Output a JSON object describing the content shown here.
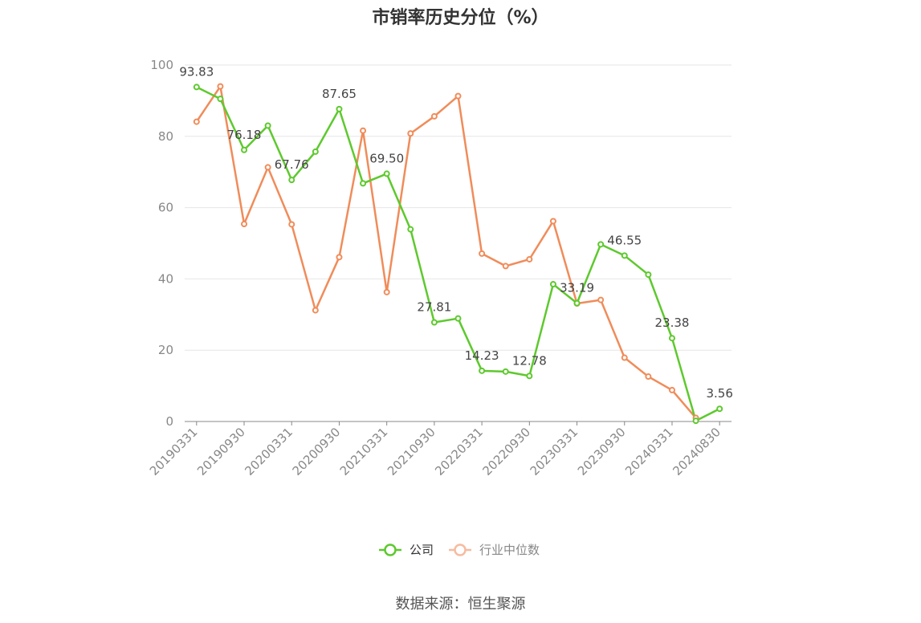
{
  "title": "市销率历史分位（%）",
  "source": "数据来源：恒生聚源",
  "colors": {
    "company": "#5ec92e",
    "industry": "#f08c5a",
    "grid": "#e6e6e6",
    "axis": "#888888"
  },
  "chart_data": {
    "type": "line",
    "title": "市销率历史分位（%）",
    "ylim": [
      0,
      100
    ],
    "yticks": [
      0,
      20,
      40,
      60,
      80,
      100
    ],
    "grid": true,
    "legend": "bottom-center",
    "x": [
      "20190331",
      "20190630",
      "20190930",
      "20191231",
      "20200331",
      "20200630",
      "20200930",
      "20201231",
      "20210331",
      "20210630",
      "20210930",
      "20211231",
      "20220331",
      "20220630",
      "20220930",
      "20221231",
      "20230331",
      "20230630",
      "20230930",
      "20231231",
      "20240331",
      "20240630",
      "20240830"
    ],
    "xtick_labels": [
      "20190331",
      "20190930",
      "20200331",
      "20200930",
      "20210331",
      "20210930",
      "20220331",
      "20220930",
      "20230331",
      "20230930",
      "20240331",
      "20240830"
    ],
    "series": [
      {
        "name": "公司",
        "color": "#5ec92e",
        "values": [
          93.83,
          90.5,
          76.18,
          83.0,
          67.76,
          75.7,
          87.65,
          66.8,
          69.5,
          53.9,
          27.81,
          28.9,
          14.23,
          14.0,
          12.78,
          38.5,
          33.19,
          49.7,
          46.55,
          41.2,
          23.38,
          0.2,
          3.56
        ],
        "labels": [
          93.83,
          null,
          76.18,
          null,
          67.76,
          null,
          87.65,
          null,
          69.5,
          null,
          27.81,
          null,
          14.23,
          null,
          12.78,
          null,
          33.19,
          null,
          46.55,
          null,
          23.38,
          null,
          3.56
        ]
      },
      {
        "name": "行业中位数",
        "color": "#f08c5a",
        "values": [
          84.1,
          94.0,
          55.4,
          71.3,
          55.3,
          31.2,
          46.1,
          81.6,
          36.3,
          80.8,
          85.6,
          91.3,
          47.1,
          43.6,
          45.5,
          56.2,
          33.1,
          34.1,
          17.9,
          12.6,
          8.8,
          1.0,
          null
        ]
      }
    ]
  }
}
